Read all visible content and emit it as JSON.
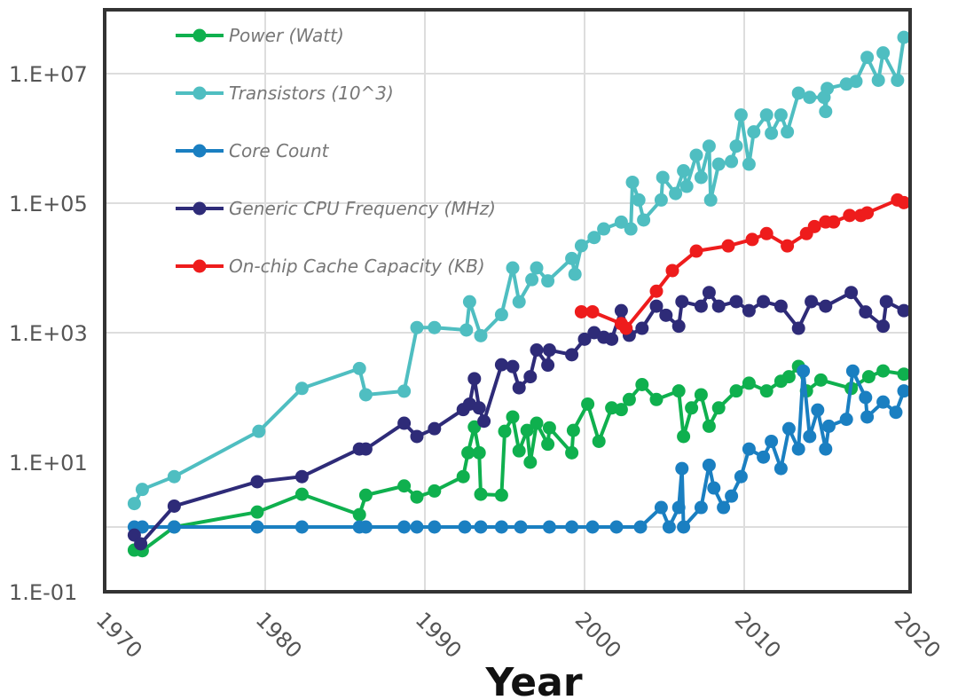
{
  "chart_data": {
    "type": "line",
    "title": "",
    "xlabel": "Year",
    "ylabel": "",
    "y_scale": "log",
    "xlim": [
      1970,
      2020
    ],
    "ylim": [
      0.1,
      50000000
    ],
    "x_ticks": [
      "1970",
      "1980",
      "1990",
      "2000",
      "2010",
      "2020"
    ],
    "y_ticks": [
      "1.E-01",
      "1.E+01",
      "1.E+03",
      "1.E+05",
      "1.E+07"
    ],
    "grid": true,
    "legend_position": "top-left",
    "series": [
      {
        "name": "Power (Watt)",
        "color": "#0fb04e",
        "points": [
          [
            1971.8,
            0.44
          ],
          [
            1972.3,
            0.43
          ],
          [
            1974.3,
            1
          ],
          [
            1979.5,
            1.7
          ],
          [
            1982.3,
            3.2
          ],
          [
            1985.9,
            1.55
          ],
          [
            1986.3,
            3.1
          ],
          [
            1988.7,
            4.3
          ],
          [
            1989.5,
            2.9
          ],
          [
            1990.6,
            3.6
          ],
          [
            1992.4,
            6
          ],
          [
            1992.7,
            14
          ],
          [
            1993.1,
            35
          ],
          [
            1993.4,
            14
          ],
          [
            1993.5,
            3.2
          ],
          [
            1994.8,
            3.1
          ],
          [
            1995,
            30
          ],
          [
            1995.5,
            50
          ],
          [
            1995.9,
            15
          ],
          [
            1996.4,
            31
          ],
          [
            1996.6,
            10
          ],
          [
            1997,
            40
          ],
          [
            1997.7,
            19
          ],
          [
            1997.8,
            34
          ],
          [
            1999.2,
            14
          ],
          [
            1999.3,
            31
          ],
          [
            2000.2,
            79
          ],
          [
            2000.9,
            21
          ],
          [
            2001.7,
            69
          ],
          [
            2002.3,
            65
          ],
          [
            2002.8,
            93
          ],
          [
            2003.6,
            158
          ],
          [
            2004.5,
            93
          ],
          [
            2005.9,
            126
          ],
          [
            2006.2,
            25
          ],
          [
            2006.7,
            69
          ],
          [
            2007.3,
            110
          ],
          [
            2007.8,
            36
          ],
          [
            2008.4,
            69
          ],
          [
            2009.5,
            126
          ],
          [
            2010.3,
            166
          ],
          [
            2011.4,
            126
          ],
          [
            2012.3,
            178
          ],
          [
            2012.8,
            209
          ],
          [
            2013.4,
            302
          ],
          [
            2013.9,
            126
          ],
          [
            2014.8,
            186
          ],
          [
            2016.7,
            138
          ],
          [
            2017.8,
            209
          ],
          [
            2018.7,
            257
          ],
          [
            2020,
            229
          ]
        ]
      },
      {
        "name": "Transistors (10^3)",
        "color": "#4fbec1",
        "points": [
          [
            1971.8,
            2.3
          ],
          [
            1972.3,
            3.8
          ],
          [
            1974.3,
            6
          ],
          [
            1979.6,
            30
          ],
          [
            1982.3,
            138
          ],
          [
            1985.9,
            280
          ],
          [
            1986.3,
            110
          ],
          [
            1988.7,
            125
          ],
          [
            1989.5,
            1200
          ],
          [
            1990.6,
            1200
          ],
          [
            1992.6,
            1100
          ],
          [
            1992.8,
            3000
          ],
          [
            1993.5,
            900
          ],
          [
            1994.8,
            1900
          ],
          [
            1995.5,
            10000
          ],
          [
            1995.9,
            3000
          ],
          [
            1996.7,
            6600
          ],
          [
            1997,
            10000
          ],
          [
            1997.7,
            6300
          ],
          [
            1999.2,
            14000
          ],
          [
            1999.4,
            8000
          ],
          [
            1999.8,
            22000
          ],
          [
            2000.6,
            29500
          ],
          [
            2001.2,
            40000
          ],
          [
            2002.3,
            51000
          ],
          [
            2002.9,
            40000
          ],
          [
            2003,
            210000
          ],
          [
            2003.4,
            112000
          ],
          [
            2003.7,
            55000
          ],
          [
            2004.8,
            112000
          ],
          [
            2004.9,
            250000
          ],
          [
            2005.7,
            141000
          ],
          [
            2006.2,
            316000
          ],
          [
            2006.4,
            182000
          ],
          [
            2007,
            550000
          ],
          [
            2007.3,
            250000
          ],
          [
            2007.8,
            760000
          ],
          [
            2007.9,
            112000
          ],
          [
            2008.4,
            400000
          ],
          [
            2009.2,
            440000
          ],
          [
            2009.5,
            760000
          ],
          [
            2009.8,
            2300000
          ],
          [
            2010.3,
            400000
          ],
          [
            2010.6,
            1260000
          ],
          [
            2011.4,
            2300000
          ],
          [
            2011.7,
            1200000
          ],
          [
            2012.3,
            2300000
          ],
          [
            2012.7,
            1260000
          ],
          [
            2013.4,
            5000000
          ],
          [
            2014.1,
            4300000
          ],
          [
            2015,
            4300000
          ],
          [
            2015.1,
            2600000
          ],
          [
            2015.2,
            5900000
          ],
          [
            2016.4,
            6900000
          ],
          [
            2017,
            7600000
          ],
          [
            2017.7,
            17800000
          ],
          [
            2018.4,
            7900000
          ],
          [
            2018.7,
            20900000
          ],
          [
            2019.6,
            7900000
          ],
          [
            2020,
            36300000
          ]
        ]
      },
      {
        "name": "Core Count",
        "color": "#1a7fc1",
        "points": [
          [
            1971.8,
            1
          ],
          [
            1972.3,
            1
          ],
          [
            1974.3,
            1
          ],
          [
            1979.5,
            1
          ],
          [
            1982.3,
            1
          ],
          [
            1985.9,
            1
          ],
          [
            1986.3,
            1
          ],
          [
            1988.7,
            1
          ],
          [
            1989.5,
            1
          ],
          [
            1990.6,
            1
          ],
          [
            1992.5,
            1
          ],
          [
            1993.5,
            1
          ],
          [
            1994.8,
            1
          ],
          [
            1996,
            1
          ],
          [
            1997.8,
            1
          ],
          [
            1999.2,
            1
          ],
          [
            2000.5,
            1
          ],
          [
            2002,
            1
          ],
          [
            2003.5,
            1
          ],
          [
            2004.8,
            2
          ],
          [
            2005.3,
            1
          ],
          [
            2005.9,
            2
          ],
          [
            2006.1,
            8
          ],
          [
            2006.2,
            1
          ],
          [
            2007.3,
            2
          ],
          [
            2007.8,
            9
          ],
          [
            2008.1,
            4
          ],
          [
            2008.7,
            2
          ],
          [
            2009.2,
            3
          ],
          [
            2009.8,
            6
          ],
          [
            2010.3,
            16
          ],
          [
            2011.2,
            12
          ],
          [
            2011.7,
            21
          ],
          [
            2012.3,
            8
          ],
          [
            2012.8,
            33
          ],
          [
            2013.4,
            16
          ],
          [
            2013.7,
            256
          ],
          [
            2014.1,
            25
          ],
          [
            2014.6,
            64
          ],
          [
            2015.1,
            16
          ],
          [
            2015.3,
            36
          ],
          [
            2016.4,
            46
          ],
          [
            2016.8,
            256
          ],
          [
            2017.6,
            100
          ],
          [
            2017.7,
            50
          ],
          [
            2018.7,
            85
          ],
          [
            2019.5,
            59
          ],
          [
            2020,
            126
          ]
        ]
      },
      {
        "name": "Generic CPU Frequency (MHz)",
        "color": "#2e2b78",
        "points": [
          [
            1971.8,
            0.75
          ],
          [
            1972.2,
            0.55
          ],
          [
            1974.3,
            2.1
          ],
          [
            1979.5,
            5
          ],
          [
            1982.3,
            6
          ],
          [
            1985.9,
            16
          ],
          [
            1986.3,
            16
          ],
          [
            1988.7,
            40
          ],
          [
            1989.5,
            25
          ],
          [
            1990.6,
            33
          ],
          [
            1992.4,
            65
          ],
          [
            1992.8,
            79
          ],
          [
            1993.1,
            195
          ],
          [
            1993.4,
            69
          ],
          [
            1993.7,
            43
          ],
          [
            1994.8,
            320
          ],
          [
            1995.5,
            300
          ],
          [
            1995.9,
            141
          ],
          [
            1996.6,
            209
          ],
          [
            1997,
            540
          ],
          [
            1997.7,
            316
          ],
          [
            1997.8,
            540
          ],
          [
            1999.2,
            457
          ],
          [
            2000,
            794
          ],
          [
            2000.6,
            1000
          ],
          [
            2001.2,
            850
          ],
          [
            2001.7,
            794
          ],
          [
            2002.3,
            2190
          ],
          [
            2002.8,
            912
          ],
          [
            2003.6,
            1170
          ],
          [
            2004.5,
            2570
          ],
          [
            2005.1,
            1860
          ],
          [
            2005.9,
            1260
          ],
          [
            2006.1,
            3020
          ],
          [
            2007.3,
            2570
          ],
          [
            2007.8,
            4170
          ],
          [
            2008.4,
            2570
          ],
          [
            2009.5,
            3020
          ],
          [
            2010.3,
            2190
          ],
          [
            2011.2,
            3020
          ],
          [
            2012.3,
            2570
          ],
          [
            2013.4,
            1170
          ],
          [
            2014.2,
            3020
          ],
          [
            2015.1,
            2570
          ],
          [
            2016.7,
            4170
          ],
          [
            2017.6,
            2090
          ],
          [
            2018.7,
            1260
          ],
          [
            2018.9,
            3020
          ],
          [
            2020,
            2190
          ]
        ]
      },
      {
        "name": "On-chip Cache Capacity (KB)",
        "color": "#ee1c1c",
        "points": [
          [
            1999.8,
            2100
          ],
          [
            2000.5,
            2100
          ],
          [
            2002.3,
            1380
          ],
          [
            2002.6,
            1170
          ],
          [
            2004.5,
            4370
          ],
          [
            2005.5,
            9100
          ],
          [
            2007,
            18200
          ],
          [
            2009,
            21900
          ],
          [
            2010.5,
            27500
          ],
          [
            2011.4,
            33900
          ],
          [
            2012.7,
            21900
          ],
          [
            2013.9,
            33900
          ],
          [
            2014.4,
            43600
          ],
          [
            2015.1,
            51300
          ],
          [
            2015.6,
            51300
          ],
          [
            2016.6,
            64600
          ],
          [
            2017.3,
            64600
          ],
          [
            2017.7,
            70800
          ],
          [
            2019.6,
            112000
          ],
          [
            2020,
            102000
          ]
        ]
      }
    ]
  }
}
